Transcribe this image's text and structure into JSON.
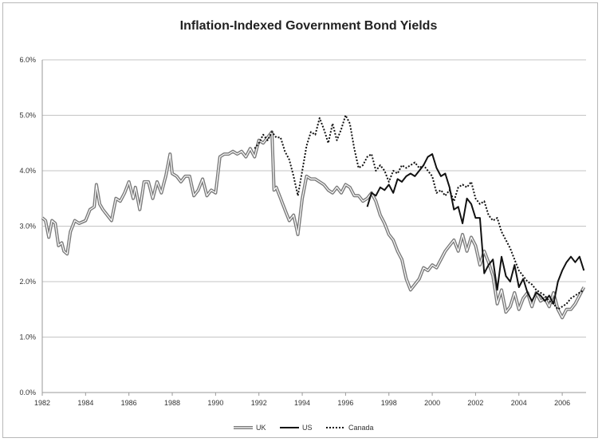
{
  "chart_data": {
    "type": "line",
    "title": "Inflation-Indexed Government Bond Yields",
    "xlabel": "",
    "ylabel": "",
    "xlim": [
      1982,
      2007.1
    ],
    "ylim": [
      0,
      6
    ],
    "y_ticks": [
      0,
      1,
      2,
      3,
      4,
      5,
      6
    ],
    "y_tick_labels": [
      "0.0%",
      "1.0%",
      "2.0%",
      "3.0%",
      "4.0%",
      "5.0%",
      "6.0%"
    ],
    "x_ticks": [
      1982,
      1984,
      1986,
      1988,
      1990,
      1992,
      1994,
      1996,
      1998,
      2000,
      2002,
      2004,
      2006
    ],
    "x_tick_labels": [
      "1982",
      "1984",
      "1986",
      "1988",
      "1990",
      "1992",
      "1994",
      "1996",
      "1998",
      "2000",
      "2002",
      "2004",
      "2006"
    ],
    "grid": "horizontal",
    "legend_position": "bottom-center",
    "series": [
      {
        "name": "UK",
        "color": "#7a7a7a",
        "style": "double",
        "x": [
          1982.0,
          1982.15,
          1982.3,
          1982.45,
          1982.6,
          1982.75,
          1982.9,
          1983.0,
          1983.15,
          1983.3,
          1983.5,
          1983.7,
          1984.0,
          1984.2,
          1984.4,
          1984.5,
          1984.65,
          1984.8,
          1985.0,
          1985.2,
          1985.4,
          1985.6,
          1985.8,
          1986.0,
          1986.2,
          1986.3,
          1986.5,
          1986.7,
          1986.9,
          1987.1,
          1987.3,
          1987.5,
          1987.7,
          1987.8,
          1987.9,
          1988.0,
          1988.2,
          1988.4,
          1988.6,
          1988.8,
          1989.0,
          1989.2,
          1989.4,
          1989.6,
          1989.8,
          1990.0,
          1990.2,
          1990.4,
          1990.6,
          1990.8,
          1991.0,
          1991.2,
          1991.4,
          1991.6,
          1991.8,
          1992.0,
          1992.2,
          1992.4,
          1992.6,
          1992.7,
          1992.8,
          1993.0,
          1993.2,
          1993.4,
          1993.6,
          1993.8,
          1994.0,
          1994.2,
          1994.4,
          1994.6,
          1994.8,
          1995.0,
          1995.2,
          1995.4,
          1995.6,
          1995.8,
          1996.0,
          1996.2,
          1996.4,
          1996.6,
          1996.8,
          1997.0,
          1997.2,
          1997.4,
          1997.6,
          1997.8,
          1998.0,
          1998.2,
          1998.4,
          1998.6,
          1998.8,
          1999.0,
          1999.2,
          1999.4,
          1999.6,
          1999.8,
          2000.0,
          2000.2,
          2000.4,
          2000.6,
          2000.8,
          2001.0,
          2001.2,
          2001.4,
          2001.6,
          2001.8,
          2002.0,
          2002.2,
          2002.4,
          2002.6,
          2002.8,
          2003.0,
          2003.2,
          2003.4,
          2003.6,
          2003.8,
          2004.0,
          2004.2,
          2004.4,
          2004.6,
          2004.8,
          2005.0,
          2005.2,
          2005.4,
          2005.6,
          2005.8,
          2006.0,
          2006.2,
          2006.4,
          2006.6,
          2006.8,
          2007.0
        ],
        "values": [
          3.15,
          3.1,
          2.8,
          3.1,
          3.05,
          2.65,
          2.7,
          2.55,
          2.5,
          2.9,
          3.1,
          3.05,
          3.1,
          3.3,
          3.35,
          3.75,
          3.4,
          3.3,
          3.2,
          3.1,
          3.5,
          3.45,
          3.6,
          3.8,
          3.5,
          3.7,
          3.3,
          3.8,
          3.8,
          3.5,
          3.8,
          3.6,
          3.9,
          4.1,
          4.3,
          3.95,
          3.9,
          3.8,
          3.9,
          3.9,
          3.55,
          3.65,
          3.85,
          3.55,
          3.65,
          3.6,
          4.25,
          4.3,
          4.3,
          4.35,
          4.3,
          4.35,
          4.25,
          4.4,
          4.25,
          4.55,
          4.5,
          4.6,
          4.7,
          3.65,
          3.7,
          3.5,
          3.3,
          3.1,
          3.2,
          2.85,
          3.5,
          3.9,
          3.85,
          3.85,
          3.8,
          3.75,
          3.65,
          3.6,
          3.7,
          3.6,
          3.75,
          3.7,
          3.55,
          3.55,
          3.45,
          3.5,
          3.6,
          3.45,
          3.2,
          3.05,
          2.85,
          2.75,
          2.55,
          2.4,
          2.05,
          1.85,
          1.95,
          2.05,
          2.25,
          2.2,
          2.3,
          2.25,
          2.4,
          2.55,
          2.65,
          2.75,
          2.55,
          2.85,
          2.55,
          2.8,
          2.65,
          2.3,
          2.55,
          2.35,
          2.1,
          1.6,
          1.85,
          1.45,
          1.55,
          1.8,
          1.5,
          1.7,
          1.8,
          1.55,
          1.8,
          1.65,
          1.7,
          1.55,
          1.8,
          1.5,
          1.35,
          1.5,
          1.5,
          1.6,
          1.75,
          1.9
        ]
      },
      {
        "name": "US",
        "color": "#111111",
        "style": "solid",
        "x": [
          1997.0,
          1997.2,
          1997.4,
          1997.6,
          1997.8,
          1998.0,
          1998.2,
          1998.4,
          1998.6,
          1998.8,
          1999.0,
          1999.2,
          1999.4,
          1999.6,
          1999.8,
          2000.0,
          2000.2,
          2000.4,
          2000.6,
          2000.8,
          2001.0,
          2001.2,
          2001.4,
          2001.6,
          2001.8,
          2002.0,
          2002.2,
          2002.4,
          2002.6,
          2002.8,
          2003.0,
          2003.2,
          2003.4,
          2003.6,
          2003.8,
          2004.0,
          2004.2,
          2004.4,
          2004.6,
          2004.8,
          2005.0,
          2005.2,
          2005.4,
          2005.6,
          2005.8,
          2006.0,
          2006.2,
          2006.4,
          2006.6,
          2006.8,
          2007.0
        ],
        "values": [
          3.35,
          3.6,
          3.55,
          3.7,
          3.65,
          3.75,
          3.6,
          3.85,
          3.8,
          3.9,
          3.95,
          3.9,
          4.0,
          4.1,
          4.25,
          4.3,
          4.05,
          3.9,
          3.95,
          3.7,
          3.3,
          3.35,
          3.05,
          3.5,
          3.4,
          3.15,
          3.15,
          2.15,
          2.3,
          2.4,
          1.85,
          2.45,
          2.1,
          2.0,
          2.3,
          1.9,
          2.05,
          1.8,
          1.65,
          1.8,
          1.75,
          1.65,
          1.75,
          1.6,
          2.0,
          2.2,
          2.35,
          2.45,
          2.35,
          2.45,
          2.2
        ]
      },
      {
        "name": "Canada",
        "color": "#111111",
        "style": "dotted",
        "x": [
          1991.8,
          1992.0,
          1992.2,
          1992.4,
          1992.6,
          1992.8,
          1993.0,
          1993.2,
          1993.4,
          1993.6,
          1993.8,
          1994.0,
          1994.2,
          1994.4,
          1994.6,
          1994.8,
          1995.0,
          1995.2,
          1995.4,
          1995.6,
          1995.8,
          1996.0,
          1996.2,
          1996.4,
          1996.6,
          1996.8,
          1997.0,
          1997.2,
          1997.4,
          1997.6,
          1997.8,
          1998.0,
          1998.2,
          1998.4,
          1998.6,
          1998.8,
          1999.0,
          1999.2,
          1999.4,
          1999.6,
          1999.8,
          2000.0,
          2000.2,
          2000.4,
          2000.6,
          2000.8,
          2001.0,
          2001.2,
          2001.4,
          2001.6,
          2001.8,
          2002.0,
          2002.2,
          2002.4,
          2002.6,
          2002.8,
          2003.0,
          2003.2,
          2003.4,
          2003.6,
          2003.8,
          2004.0,
          2004.2,
          2004.4,
          2004.6,
          2004.8,
          2005.0,
          2005.2,
          2005.4,
          2005.6,
          2005.8,
          2006.0,
          2006.2,
          2006.4,
          2006.6,
          2006.8,
          2007.0
        ],
        "values": [
          4.4,
          4.5,
          4.65,
          4.55,
          4.7,
          4.6,
          4.6,
          4.35,
          4.2,
          3.9,
          3.55,
          4.0,
          4.45,
          4.7,
          4.65,
          4.95,
          4.75,
          4.5,
          4.85,
          4.55,
          4.75,
          5.0,
          4.85,
          4.4,
          4.05,
          4.1,
          4.25,
          4.3,
          4.0,
          4.1,
          4.0,
          3.8,
          4.0,
          3.95,
          4.1,
          4.05,
          4.1,
          4.15,
          4.05,
          4.1,
          4.0,
          3.9,
          3.6,
          3.65,
          3.55,
          3.65,
          3.45,
          3.7,
          3.75,
          3.7,
          3.8,
          3.5,
          3.4,
          3.45,
          3.2,
          3.1,
          3.15,
          2.9,
          2.75,
          2.6,
          2.4,
          2.2,
          2.1,
          2.0,
          1.95,
          1.85,
          1.8,
          1.75,
          1.65,
          1.6,
          1.5,
          1.55,
          1.6,
          1.7,
          1.75,
          1.8,
          1.85
        ]
      }
    ]
  }
}
